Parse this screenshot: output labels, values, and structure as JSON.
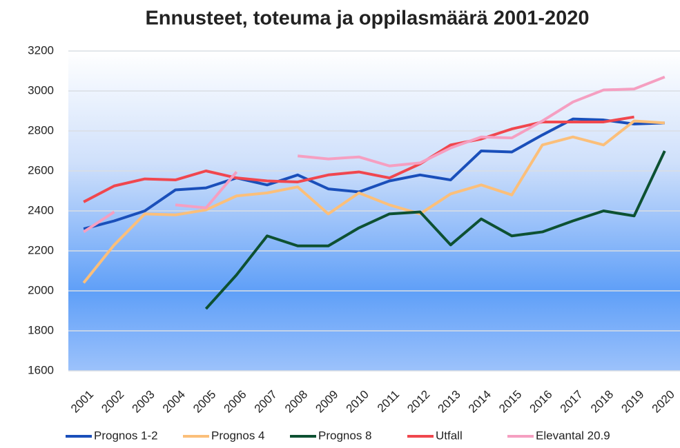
{
  "chart_data": {
    "type": "line",
    "title": "Ennusteet, toteuma ja oppilasmäärä 2001-2020",
    "categories": [
      "2001",
      "2002",
      "2003",
      "2004",
      "2005",
      "2006",
      "2007",
      "2008",
      "2009",
      "2010",
      "2011",
      "2012",
      "2013",
      "2014",
      "2015",
      "2016",
      "2017",
      "2018",
      "2019",
      "2020"
    ],
    "ylim": [
      1600,
      3200
    ],
    "yticks": [
      1600,
      1800,
      2000,
      2200,
      2400,
      2600,
      2800,
      3000,
      3200
    ],
    "grid": true,
    "legend": "bottom",
    "series": [
      {
        "name": "Prognos 1-2",
        "color": "#1a4fba",
        "values": [
          2310,
          2350,
          2400,
          2505,
          2515,
          2565,
          2530,
          2580,
          2510,
          2495,
          2550,
          2580,
          2555,
          2700,
          2695,
          2780,
          2860,
          2855,
          2835,
          2840
        ]
      },
      {
        "name": "Prognos 4",
        "color": "#fbbf7a",
        "values": [
          2040,
          2230,
          2385,
          2380,
          2405,
          2475,
          2490,
          2520,
          2385,
          2490,
          2430,
          2385,
          2485,
          2530,
          2480,
          2730,
          2770,
          2730,
          2850,
          2840
        ]
      },
      {
        "name": "Prognos 8",
        "color": "#0d5132",
        "values": [
          null,
          null,
          null,
          null,
          1910,
          2080,
          2275,
          2225,
          2225,
          2315,
          2385,
          2395,
          2230,
          2360,
          2275,
          2295,
          2350,
          2400,
          2375,
          2700
        ]
      },
      {
        "name": "Utfall",
        "color": "#f0474e",
        "values": [
          2445,
          2525,
          2560,
          2555,
          2600,
          2565,
          2550,
          2545,
          2580,
          2595,
          2565,
          2635,
          2730,
          2760,
          2810,
          2845,
          2845,
          2845,
          2870,
          null
        ]
      },
      {
        "name": "Elevantal 20.9",
        "color": "#f59fc1",
        "values": [
          2295,
          2395,
          null,
          2430,
          2415,
          2595,
          null,
          2675,
          2660,
          2670,
          2625,
          2640,
          2715,
          2770,
          2765,
          2850,
          2945,
          3005,
          3010,
          3070
        ]
      }
    ]
  }
}
